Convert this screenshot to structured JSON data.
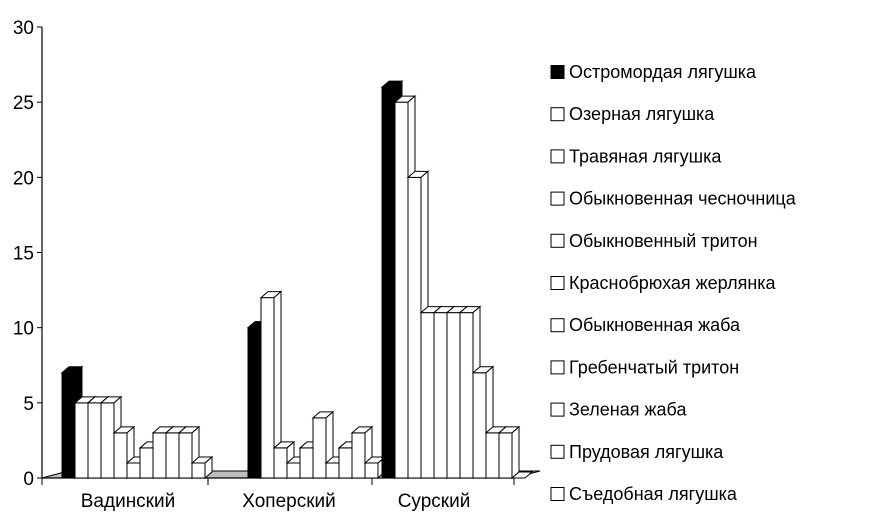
{
  "chart_data": {
    "type": "bar",
    "title": "",
    "xlabel": "",
    "ylabel": "",
    "ylim": [
      0,
      30
    ],
    "yticks": [
      0,
      5,
      10,
      15,
      20,
      25,
      30
    ],
    "grid": false,
    "legend_position": "right",
    "categories": [
      "Вадинский",
      "Хоперский",
      "Сурский"
    ],
    "series": [
      {
        "name": "Остромордая лягушка",
        "color": "#000000",
        "values": [
          7,
          10,
          26
        ]
      },
      {
        "name": "Озерная лягушка",
        "color": "#ffffff",
        "values": [
          5,
          12,
          25
        ]
      },
      {
        "name": "Травяная лягушка",
        "color": "#ffffff",
        "values": [
          5,
          2,
          20
        ]
      },
      {
        "name": "Обыкновенная чесночница",
        "color": "#ffffff",
        "values": [
          5,
          1,
          11
        ]
      },
      {
        "name": "Обыкновенный тритон",
        "color": "#ffffff",
        "values": [
          3,
          2,
          11
        ]
      },
      {
        "name": "Краснобрюхая жерлянка",
        "color": "#ffffff",
        "values": [
          1,
          4,
          11
        ]
      },
      {
        "name": "Обыкновенная жаба",
        "color": "#ffffff",
        "values": [
          2,
          1,
          11
        ]
      },
      {
        "name": "Гребенчатый тритон",
        "color": "#ffffff",
        "values": [
          3,
          2,
          7
        ]
      },
      {
        "name": "Зеленая жаба",
        "color": "#ffffff",
        "values": [
          3,
          3,
          3
        ]
      },
      {
        "name": "Прудовая лягушка",
        "color": "#ffffff",
        "values": [
          3,
          1,
          3
        ]
      },
      {
        "name": "Съедобная лягушка",
        "color": "#ffffff",
        "values": [
          1,
          0,
          0
        ]
      }
    ]
  }
}
